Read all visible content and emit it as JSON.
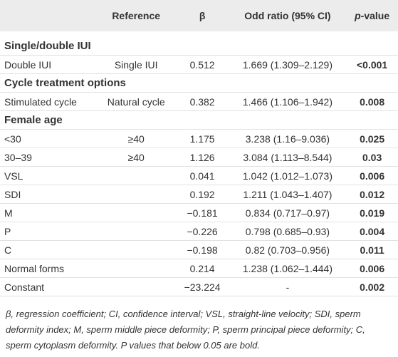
{
  "table": {
    "header": [
      "Reference",
      "β",
      "Odd ratio (95% CI)",
      {
        "italic": "p",
        "text": "-value"
      }
    ],
    "sections": [
      {
        "title": "Single/double IUI",
        "rows": [
          [
            "Double IUI",
            "Single IUI",
            "0.512",
            "1.669 (1.309–2.129)",
            "<0.001"
          ]
        ]
      },
      {
        "title": "Cycle treatment options",
        "rows": [
          [
            "Stimulated cycle",
            "Natural cycle",
            "0.382",
            "1.466 (1.106–1.942)",
            "0.008"
          ]
        ]
      },
      {
        "title": "Female age",
        "rows": [
          [
            "<30",
            "≥40",
            "1.175",
            "3.238 (1.16–9.036)",
            "0.025"
          ],
          [
            "30–39",
            "≥40",
            "1.126",
            "3.084 (1.113–8.544)",
            "0.03"
          ],
          [
            "VSL",
            null,
            "0.041",
            "1.042 (1.012–1.073)",
            "0.006"
          ],
          [
            "SDI",
            null,
            "0.192",
            "1.211 (1.043–1.407)",
            "0.012"
          ],
          [
            "M",
            null,
            "−0.181",
            "0.834 (0.717–0.97)",
            "0.019"
          ],
          [
            "P",
            null,
            "−0.226",
            "0.798 (0.685–0.93)",
            "0.004"
          ],
          [
            "C",
            null,
            "−0.198",
            "0.82 (0.703–0.956)",
            "0.011"
          ],
          [
            "Normal forms",
            null,
            "0.214",
            "1.238 (1.062–1.444)",
            "0.006"
          ],
          [
            "Constant",
            null,
            "−23.224",
            "-",
            "0.002"
          ]
        ]
      }
    ]
  },
  "footnote": "β, regression coefficient; CI, confidence interval; VSL, straight-line velocity; SDI, sperm deformity index; M, sperm middle piece deformity; P, sperm principal piece deformity; C, sperm cytoplasm deformity. P values that below 0.05 are bold."
}
